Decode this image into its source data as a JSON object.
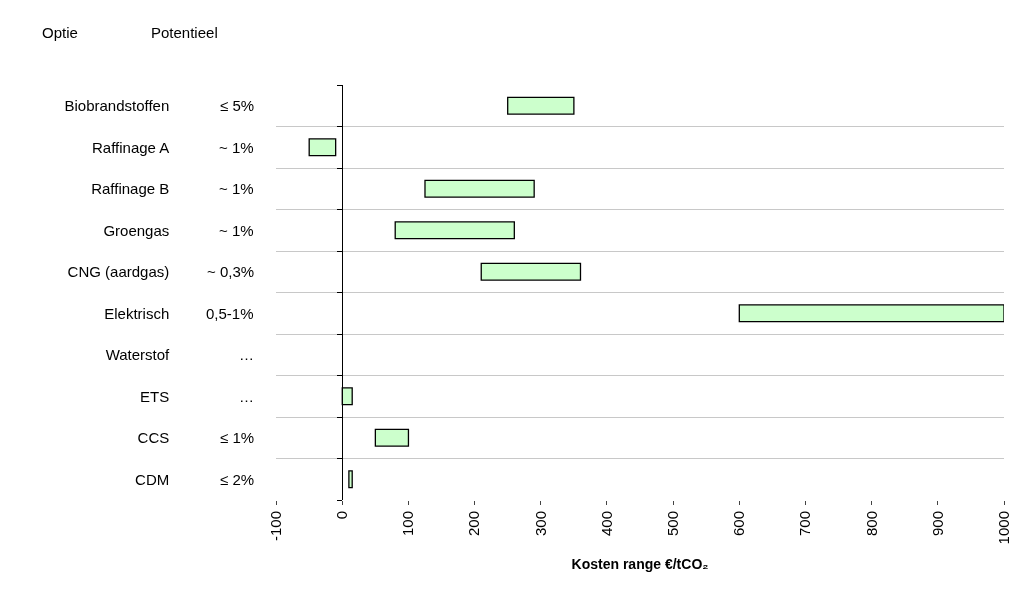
{
  "chart_data": {
    "type": "bar",
    "orientation": "horizontal",
    "xlabel": "Kosten range €/tCO₂",
    "categories": [
      "Biobrandstoffen",
      "Raffinage A",
      "Raffinage B",
      "Groengas",
      "CNG (aardgas)",
      "Elektrisch",
      "Waterstof",
      "ETS",
      "CCS",
      "CDM"
    ],
    "y2_categories": [
      "≤ 5%",
      "~ 1%",
      "~ 1%",
      "~ 1%",
      "~ 0,3%",
      "0,5-1%",
      "…",
      "…",
      "≤ 1%",
      "≤ 2%"
    ],
    "base": [
      250,
      -50,
      125,
      80,
      210,
      600,
      null,
      0,
      50,
      10
    ],
    "values": [
      100,
      40,
      165,
      180,
      150,
      400,
      null,
      15,
      50,
      5
    ],
    "color": "#ccffcc",
    "xlim": [
      -100,
      1000
    ],
    "xticks": [
      -100,
      0,
      100,
      200,
      300,
      400,
      500,
      600,
      700,
      800,
      900,
      1000
    ],
    "grid": "y",
    "annotations": [
      "Optie",
      "Potentieel"
    ]
  }
}
